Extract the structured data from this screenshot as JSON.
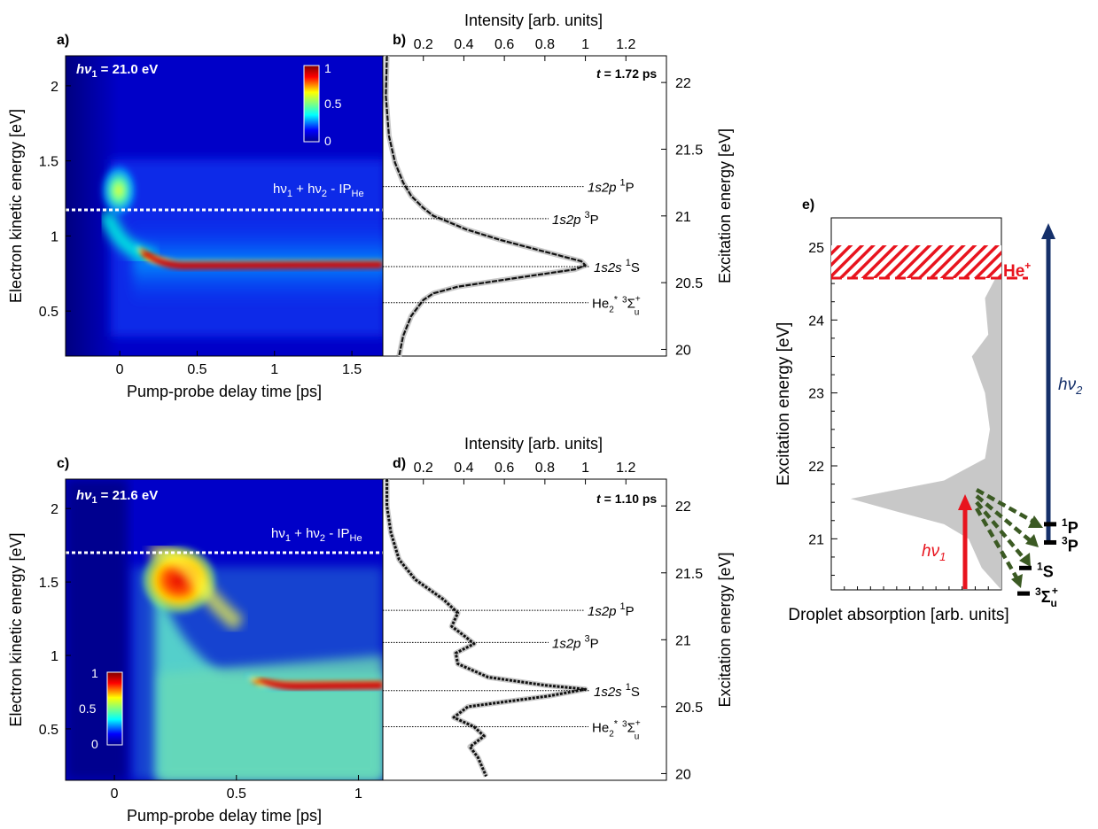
{
  "panels": {
    "a": {
      "label": "a)",
      "hv_prefix": "hν",
      "hv_sub": "1",
      "hv_value": "= 21.0 eV"
    },
    "b": {
      "label": "b)",
      "time_prefix": "t",
      "time_value": "= 1.72 ps"
    },
    "c": {
      "label": "c)",
      "hv_prefix": "hν",
      "hv_sub": "1",
      "hv_value": "= 21.6 eV"
    },
    "d": {
      "label": "d)",
      "time_prefix": "t",
      "time_value": "= 1.10 ps"
    },
    "e": {
      "label": "e)"
    }
  },
  "threshold_label": {
    "main": "hν",
    "sub1": "1",
    "plus": " + hν",
    "sub2": "2",
    "minus": " - IP",
    "sub3": "He"
  },
  "state_labels": {
    "p1_name": "1s2p",
    "p1_sup": "1",
    "p1_term": "P",
    "p3_name": "1s2p",
    "p3_sup": "3",
    "p3_term": "P",
    "s1_name": "1s2s",
    "s1_sup": "1",
    "s1_term": "S",
    "he2_name": "He",
    "he2_sub": "2",
    "he2_star": "*",
    "he2_sup": "3",
    "he2_term": "Σ",
    "he2_plus": "+",
    "he2_u": "u"
  },
  "colorbar": {
    "ticks": [
      "1",
      "0.5",
      "0"
    ]
  },
  "diagram_e": {
    "ion_label": "He",
    "ion_sup": "+",
    "hv1": "hν",
    "hv1_sub": "1",
    "hv2": "hν",
    "hv2_sub": "2",
    "levels": [
      {
        "sup": "1",
        "name": "P"
      },
      {
        "sup": "3",
        "name": "P"
      },
      {
        "sup": "1",
        "name": "S"
      },
      {
        "sup": "3",
        "name": "Σ",
        "sub": "u",
        "plus": "+"
      }
    ],
    "colors": {
      "ion": "#e8141e",
      "hv2": "#15306a",
      "hv1": "#e8141e",
      "relax": "#3b5a23",
      "absorption": "#c8c8c8"
    }
  },
  "chart_data": [
    {
      "type": "heatmap",
      "panel": "a",
      "xlabel": "Pump-probe delay time [ps]",
      "ylabel": "Electron kinetic energy [eV]",
      "xlim": [
        -0.35,
        1.7
      ],
      "ylim": [
        0.2,
        2.2
      ],
      "xticks": [
        "0",
        "0.5",
        "1",
        "1.5"
      ],
      "yticks": [
        "0.5",
        "1",
        "1.5",
        "2"
      ],
      "threshold_energy_eV": 1.05,
      "colorbar_range": [
        0,
        1
      ],
      "features": [
        {
          "name": "initial",
          "t": 0.02,
          "E": 1.12,
          "intensity": 0.7
        },
        {
          "name": "1s2s",
          "E": 0.68,
          "t_start": 0.15,
          "intensity": 1.0
        }
      ]
    },
    {
      "type": "line",
      "panel": "b",
      "xlabel": "Intensity [arb. units]",
      "ylabel": "Excitation energy [eV]",
      "xticks": [
        "0.2",
        "0.4",
        "0.6",
        "0.8",
        "1",
        "1.2"
      ],
      "yticks": [
        "20",
        "20.5",
        "21",
        "21.5",
        "22"
      ],
      "xlim": [
        0,
        1.4
      ],
      "ylim": [
        19.95,
        22.2
      ],
      "state_energies_eV": [
        21.22,
        20.98,
        20.62,
        20.35
      ],
      "series": [
        {
          "x": [
            0.02,
            0.015,
            0.03,
            0.06,
            0.1,
            0.14,
            0.2,
            0.25,
            0.3,
            0.41,
            0.58,
            0.83,
            0.98,
            1.0,
            0.95,
            0.68,
            0.37,
            0.25,
            0.2,
            0.18,
            0.14,
            0.1,
            0.08
          ],
          "y": [
            22.2,
            21.9,
            21.6,
            21.4,
            21.25,
            21.15,
            21.06,
            21.0,
            20.97,
            20.9,
            20.82,
            20.72,
            20.66,
            20.63,
            20.6,
            20.54,
            20.47,
            20.42,
            20.37,
            20.33,
            20.25,
            20.1,
            19.95
          ]
        }
      ]
    },
    {
      "type": "heatmap",
      "panel": "c",
      "xlabel": "Pump-probe delay time [ps]",
      "ylabel": "Electron kinetic energy [eV]",
      "xlim": [
        -0.2,
        1.1
      ],
      "ylim": [
        0.15,
        2.2
      ],
      "xticks": [
        "0",
        "0.5",
        "1"
      ],
      "yticks": [
        "0.5",
        "1",
        "1.5",
        "2"
      ],
      "threshold_energy_eV": 1.65,
      "colorbar_range": [
        0,
        1
      ],
      "features": [
        {
          "name": "initial",
          "t": 0.16,
          "E": 1.52,
          "intensity": 1.0
        },
        {
          "name": "1s2s",
          "E": 0.68,
          "t_start": 0.5,
          "intensity": 1.0
        }
      ]
    },
    {
      "type": "line",
      "panel": "d",
      "xlabel": "Intensity [arb. units]",
      "ylabel": "Excitation energy [eV]",
      "xticks": [
        "0.2",
        "0.4",
        "0.6",
        "0.8",
        "1",
        "1.2"
      ],
      "yticks": [
        "20",
        "20.5",
        "21",
        "21.5",
        "22"
      ],
      "xlim": [
        0,
        1.4
      ],
      "ylim": [
        19.95,
        22.2
      ],
      "state_energies_eV": [
        21.22,
        20.98,
        20.62,
        20.35
      ],
      "series": [
        {
          "x": [
            0.02,
            0.02,
            0.04,
            0.08,
            0.16,
            0.3,
            0.37,
            0.34,
            0.41,
            0.45,
            0.36,
            0.37,
            0.52,
            0.8,
            1.0,
            0.82,
            0.42,
            0.35,
            0.45,
            0.5,
            0.43,
            0.47,
            0.49,
            0.51
          ],
          "y": [
            22.2,
            22.0,
            21.8,
            21.6,
            21.45,
            21.3,
            21.2,
            21.1,
            21.02,
            20.97,
            20.9,
            20.82,
            20.72,
            20.66,
            20.63,
            20.58,
            20.5,
            20.42,
            20.35,
            20.28,
            20.2,
            20.12,
            20.05,
            19.98
          ]
        }
      ]
    },
    {
      "type": "area",
      "panel": "e",
      "xlabel": "Droplet absorption [arb. units]",
      "ylabel": "Excitation energy [eV]",
      "yticks": [
        "21",
        "22",
        "23",
        "24",
        "25"
      ],
      "ylim": [
        20.3,
        25.4
      ],
      "ion_threshold_eV": 24.6,
      "ion_band_top_eV": 25.05,
      "hv1_top_eV": 21.6,
      "hv2_top_eV": 25.3,
      "level_energies_eV": [
        21.2,
        20.95,
        20.6,
        20.25
      ],
      "x": [
        0,
        0.12,
        0.2,
        0.35,
        0.6,
        0.92,
        0.35,
        0.1,
        0.07,
        0.1,
        0.18,
        0.08,
        0.1,
        0.03,
        0,
        0
      ],
      "y": [
        20.3,
        20.6,
        21.0,
        21.2,
        21.35,
        21.55,
        21.8,
        22.1,
        22.5,
        23.0,
        23.5,
        23.8,
        24.3,
        24.6,
        24.8,
        25.4
      ]
    }
  ]
}
